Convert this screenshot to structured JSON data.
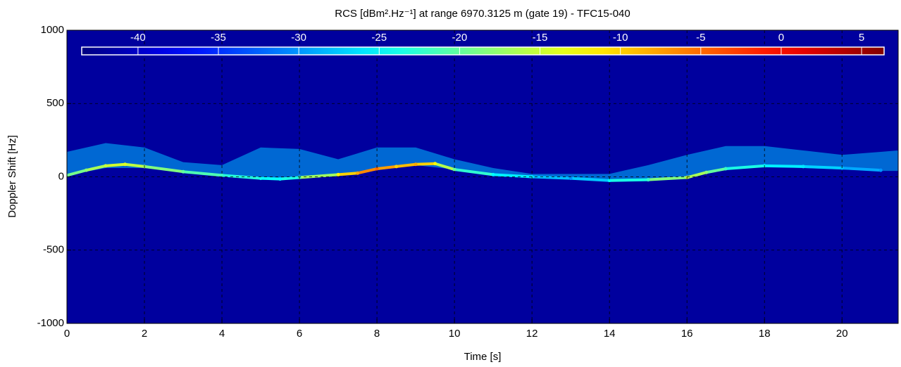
{
  "chart_data": {
    "type": "spectrogram",
    "title": "RCS [dBm².Hz⁻¹] at range 6970.3125 m (gate 19) - TFC15-040",
    "x_label": "Time [s]",
    "y_label": "Doppler Shift [Hz]",
    "xlim": [
      0,
      21.45
    ],
    "xticks": [
      0,
      2,
      4,
      6,
      8,
      10,
      12,
      14,
      16,
      18,
      20
    ],
    "ylim": [
      -1000,
      1000
    ],
    "yticks": [
      -1000,
      -500,
      0,
      500,
      1000
    ],
    "grid": true,
    "colormap": "jet",
    "clim": [
      -43.5,
      6.4
    ],
    "cticks": [
      -40,
      -35,
      -30,
      -25,
      -20,
      -15,
      -10,
      -5,
      0,
      5
    ],
    "background_level": -42,
    "cloud": {
      "level": -28,
      "x": [
        0,
        1,
        2,
        3,
        4,
        5,
        6,
        7,
        8,
        9,
        10,
        11,
        12,
        14,
        15,
        16,
        17,
        18,
        19,
        20,
        21,
        21.45
      ],
      "upper": [
        170,
        230,
        200,
        100,
        80,
        200,
        190,
        120,
        200,
        200,
        120,
        60,
        20,
        20,
        80,
        150,
        210,
        210,
        180,
        150,
        170,
        180
      ],
      "lower": [
        10,
        60,
        60,
        30,
        5,
        -10,
        -5,
        10,
        45,
        80,
        50,
        15,
        0,
        -25,
        -20,
        -5,
        50,
        70,
        60,
        50,
        40,
        40
      ]
    },
    "trace": {
      "x": [
        0,
        0.5,
        1,
        1.5,
        2,
        3,
        4,
        5,
        5.5,
        6,
        7,
        7.5,
        8,
        8.5,
        9,
        9.5,
        10,
        11,
        12,
        13,
        14,
        15,
        16,
        16.5,
        17,
        18,
        19,
        20,
        21
      ],
      "values": [
        10,
        45,
        75,
        85,
        70,
        35,
        10,
        -10,
        -15,
        -5,
        15,
        25,
        55,
        70,
        85,
        90,
        50,
        15,
        0,
        -10,
        -25,
        -20,
        -5,
        30,
        55,
        75,
        70,
        60,
        45
      ],
      "levels": [
        -20,
        -18,
        -15,
        -14,
        -17,
        -20,
        -22,
        -24,
        -25,
        -22,
        -12,
        -8,
        -5,
        -10,
        -8,
        -12,
        -20,
        -25,
        -26,
        -30,
        -25,
        -22,
        -15,
        -18,
        -22,
        -25,
        -26,
        -28,
        -30
      ]
    }
  }
}
